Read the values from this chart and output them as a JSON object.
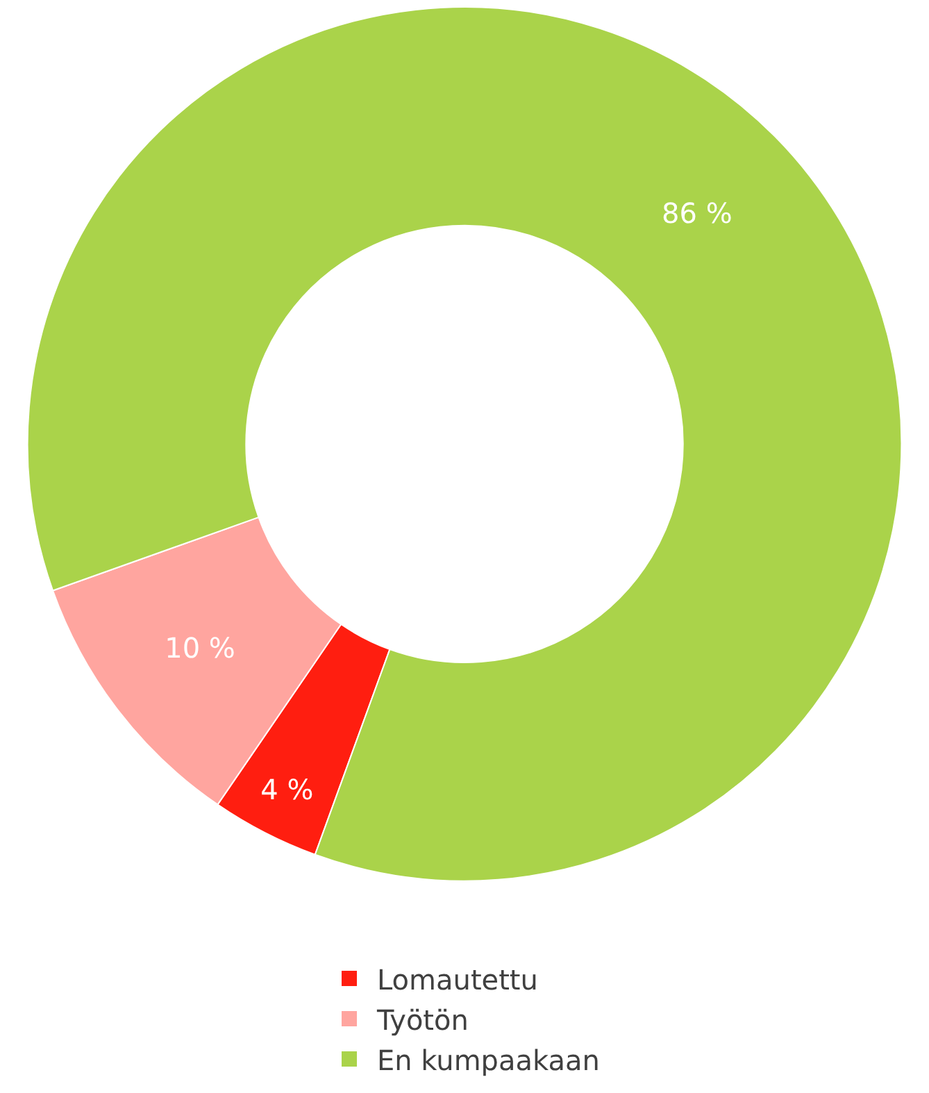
{
  "chart_data": {
    "type": "donut",
    "categories": [
      "Lomautettu",
      "Työtön",
      "En kumpaakaan"
    ],
    "values": [
      4,
      10,
      86
    ],
    "colors": [
      "#ff1e10",
      "#ffa59f",
      "#aad34a"
    ],
    "value_labels": [
      "4 %",
      "10 %",
      "86 %"
    ],
    "legend": "bottom"
  }
}
